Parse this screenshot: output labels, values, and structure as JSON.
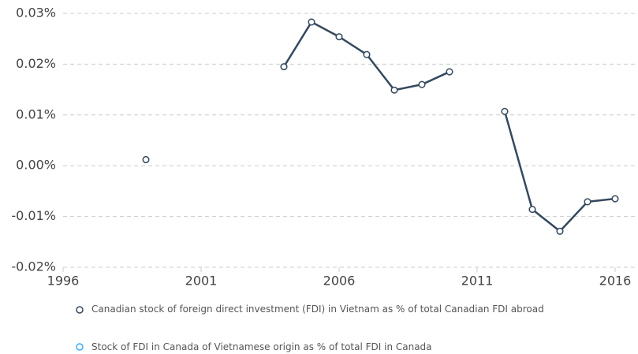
{
  "chart_data": {
    "type": "line",
    "x": [
      1999,
      2000,
      2001,
      2002,
      2003,
      2004,
      2005,
      2006,
      2007,
      2008,
      2009,
      2010,
      2011,
      2012,
      2013,
      2014,
      2015,
      2016
    ],
    "series": [
      {
        "name": "Canadian stock of foreign direct investment (FDI) in Vietnam as % of total Canadian FDI abroad",
        "color": "#34495e",
        "values": [
          0.0012,
          null,
          null,
          null,
          null,
          0.0195,
          0.0283,
          0.0254,
          0.0219,
          0.0149,
          0.016,
          0.0185,
          null,
          0.0107,
          -0.0086,
          -0.0129,
          -0.0071,
          -0.0065
        ]
      },
      {
        "name": "Stock of FDI in Canada of Vietnamese origin as % of total FDI in Canada",
        "color": "#3fa9f5",
        "values": [
          null,
          null,
          null,
          null,
          null,
          null,
          null,
          null,
          null,
          null,
          null,
          null,
          null,
          null,
          null,
          null,
          null,
          null
        ]
      }
    ],
    "xlim": [
      1996,
      2016
    ],
    "xticks": [
      1996,
      2001,
      2006,
      2011,
      2016
    ],
    "ylim": [
      -0.02,
      0.03
    ],
    "yticks": [
      {
        "value": -0.02,
        "label": "-0.02%"
      },
      {
        "value": -0.01,
        "label": "-0.01%"
      },
      {
        "value": 0,
        "label": "0.00%"
      },
      {
        "value": 0.01,
        "label": "0.01%"
      },
      {
        "value": 0.02,
        "label": "0.02%"
      },
      {
        "value": 0.03,
        "label": "0.03%"
      }
    ],
    "grid": true
  }
}
